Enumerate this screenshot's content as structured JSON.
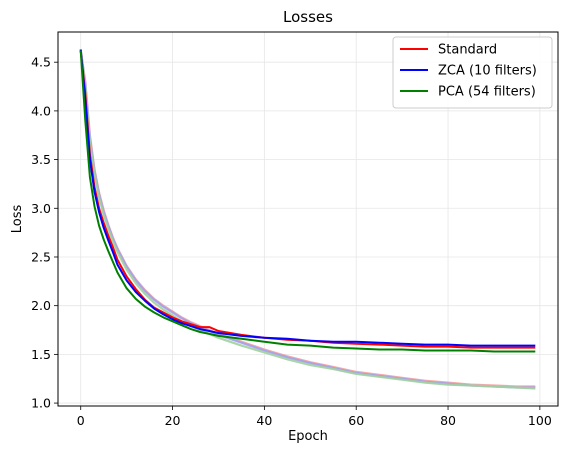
{
  "chart_data": {
    "type": "line",
    "title": "Losses",
    "xlabel": "Epoch",
    "ylabel": "Loss",
    "xlim": [
      -4.95,
      103.95
    ],
    "ylim": [
      0.97,
      4.81
    ],
    "xticks": [
      0,
      20,
      40,
      60,
      80,
      100
    ],
    "yticks": [
      1.0,
      1.5,
      2.0,
      2.5,
      3.0,
      3.5,
      4.0,
      4.5
    ],
    "grid": true,
    "legend_position": "top-right",
    "x": [
      0,
      1,
      2,
      3,
      4,
      5,
      6,
      7,
      8,
      10,
      12,
      14,
      16,
      18,
      20,
      22,
      24,
      26,
      28,
      30,
      35,
      40,
      45,
      50,
      55,
      60,
      65,
      70,
      75,
      80,
      85,
      90,
      95,
      99
    ],
    "series": [
      {
        "name": "Standard",
        "color": "#ff0000",
        "values": [
          4.62,
          4.18,
          3.55,
          3.22,
          3.0,
          2.85,
          2.72,
          2.6,
          2.47,
          2.3,
          2.17,
          2.06,
          1.98,
          1.93,
          1.88,
          1.84,
          1.81,
          1.78,
          1.78,
          1.74,
          1.7,
          1.67,
          1.65,
          1.64,
          1.62,
          1.61,
          1.6,
          1.59,
          1.58,
          1.58,
          1.57,
          1.57,
          1.57,
          1.57
        ]
      },
      {
        "name": "ZCA (10 filters)",
        "color": "#0000ff",
        "values": [
          4.63,
          4.12,
          3.5,
          3.17,
          2.96,
          2.8,
          2.67,
          2.55,
          2.42,
          2.26,
          2.14,
          2.05,
          1.97,
          1.91,
          1.86,
          1.82,
          1.79,
          1.76,
          1.74,
          1.72,
          1.69,
          1.67,
          1.66,
          1.64,
          1.63,
          1.63,
          1.62,
          1.61,
          1.6,
          1.6,
          1.59,
          1.59,
          1.59,
          1.59
        ]
      },
      {
        "name": "PCA (54 filters)",
        "color": "#008000",
        "values": [
          4.62,
          3.9,
          3.32,
          3.02,
          2.82,
          2.68,
          2.56,
          2.45,
          2.34,
          2.18,
          2.07,
          1.99,
          1.93,
          1.88,
          1.84,
          1.8,
          1.76,
          1.73,
          1.71,
          1.69,
          1.66,
          1.63,
          1.6,
          1.59,
          1.57,
          1.56,
          1.55,
          1.55,
          1.54,
          1.54,
          1.54,
          1.53,
          1.53,
          1.53
        ]
      },
      {
        "color": "#f4a0a0",
        "values": [
          4.62,
          4.3,
          3.75,
          3.4,
          3.16,
          2.98,
          2.83,
          2.7,
          2.59,
          2.41,
          2.27,
          2.16,
          2.07,
          2.0,
          1.94,
          1.88,
          1.83,
          1.79,
          1.75,
          1.71,
          1.63,
          1.55,
          1.48,
          1.42,
          1.37,
          1.32,
          1.29,
          1.26,
          1.23,
          1.21,
          1.19,
          1.18,
          1.17,
          1.17
        ]
      },
      {
        "color": "#a0a0f0",
        "values": [
          4.63,
          4.28,
          3.72,
          3.38,
          3.14,
          2.96,
          2.82,
          2.69,
          2.58,
          2.4,
          2.26,
          2.15,
          2.06,
          1.99,
          1.93,
          1.87,
          1.82,
          1.78,
          1.74,
          1.7,
          1.62,
          1.54,
          1.47,
          1.41,
          1.36,
          1.31,
          1.28,
          1.25,
          1.22,
          1.2,
          1.18,
          1.17,
          1.16,
          1.16
        ]
      },
      {
        "color": "#a0d0a0",
        "values": [
          4.62,
          4.25,
          3.68,
          3.35,
          3.11,
          2.93,
          2.79,
          2.66,
          2.55,
          2.37,
          2.23,
          2.12,
          2.03,
          1.96,
          1.9,
          1.84,
          1.79,
          1.75,
          1.71,
          1.67,
          1.59,
          1.52,
          1.45,
          1.39,
          1.35,
          1.3,
          1.27,
          1.24,
          1.21,
          1.19,
          1.18,
          1.17,
          1.16,
          1.15
        ]
      }
    ]
  }
}
